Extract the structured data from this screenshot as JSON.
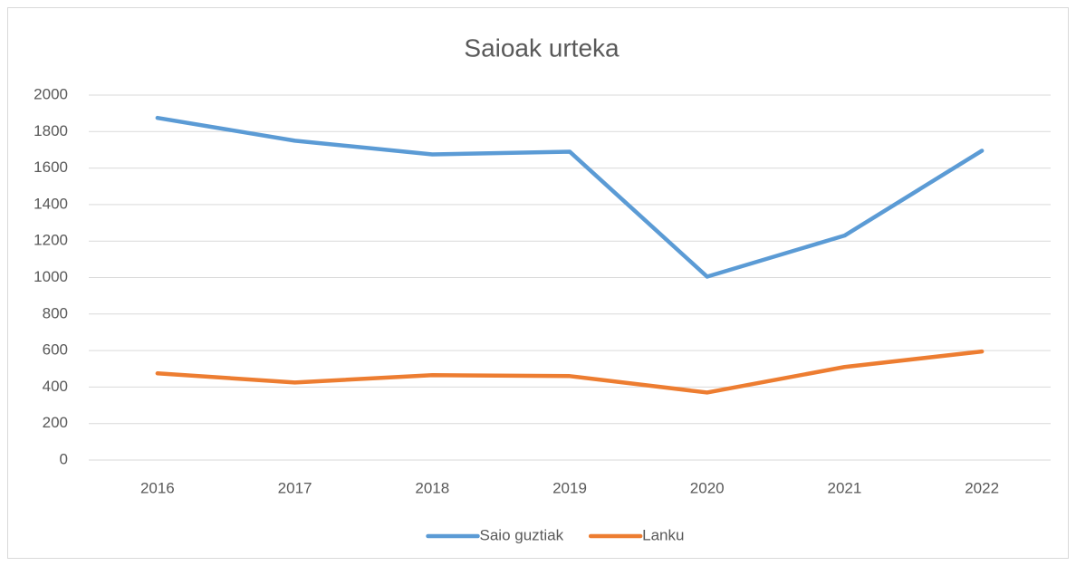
{
  "chart_data": {
    "type": "line",
    "title": "Saioak urteka",
    "categories": [
      "2016",
      "2017",
      "2018",
      "2019",
      "2020",
      "2021",
      "2022"
    ],
    "series": [
      {
        "name": "Saio guztiak",
        "color": "#5b9bd5",
        "values": [
          1875,
          1750,
          1675,
          1690,
          1005,
          1230,
          1695
        ]
      },
      {
        "name": "Lanku",
        "color": "#ed7d31",
        "values": [
          475,
          425,
          465,
          460,
          370,
          510,
          595
        ]
      }
    ],
    "ylim": [
      0,
      2000
    ],
    "yticks": [
      0,
      200,
      400,
      600,
      800,
      1000,
      1200,
      1400,
      1600,
      1800,
      2000
    ],
    "grid": true,
    "legend": "bottom"
  }
}
